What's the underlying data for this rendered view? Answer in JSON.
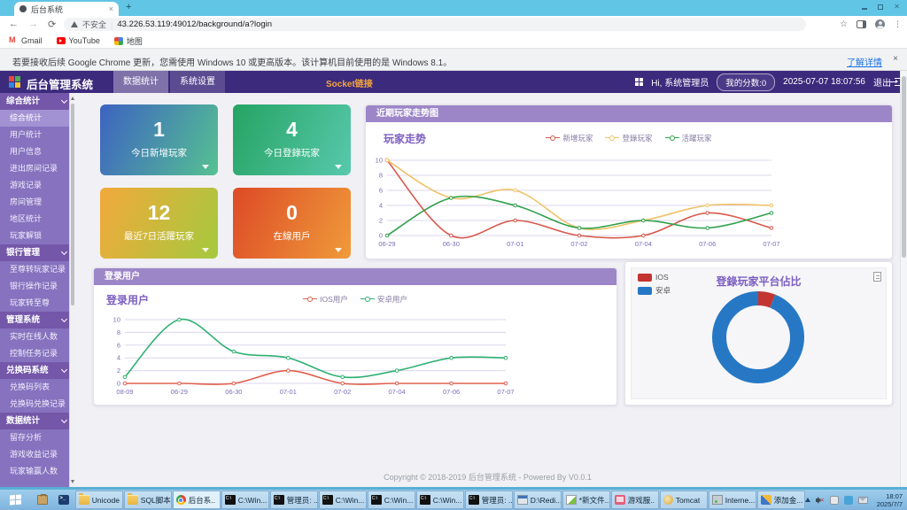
{
  "browser": {
    "tab_title": "后台系统",
    "tab_close": "×",
    "new_tab": "+",
    "url_security": "不安全",
    "url": "43.226.53.119:49012/background/a?login",
    "bookmarks": [
      {
        "label": "Gmail",
        "icon": "gmail"
      },
      {
        "label": "YouTube",
        "icon": "youtube"
      },
      {
        "label": "地图",
        "icon": "maps"
      }
    ]
  },
  "notification": {
    "text": "若要接收后续 Google Chrome 更新，您需使用 Windows 10 或更高版本。该计算机目前使用的是 Windows 8.1。",
    "link": "了解详情",
    "close": "×"
  },
  "header": {
    "title": "后台管理系统",
    "nav": [
      {
        "label": "数据统计",
        "active": true
      },
      {
        "label": "系统设置",
        "active": false
      }
    ],
    "socket": "Socket链接",
    "greeting": "Hi, 系统管理员",
    "score": "我的分数:0",
    "datetime": "2025-07-07 18:07:56",
    "logout": "退出"
  },
  "sidebar": {
    "sections": [
      {
        "label": "综合统计",
        "items": [
          {
            "label": "综合统计",
            "active": true
          },
          {
            "label": "用户统计"
          },
          {
            "label": "用户信息"
          },
          {
            "label": "进出房间记录"
          },
          {
            "label": "游戏记录"
          },
          {
            "label": "房间管理"
          },
          {
            "label": "地区统计"
          },
          {
            "label": "玩家解锁"
          }
        ]
      },
      {
        "label": "银行管理",
        "items": [
          {
            "label": "至尊转玩家记录"
          },
          {
            "label": "银行操作记录"
          },
          {
            "label": "玩家转至尊"
          }
        ]
      },
      {
        "label": "管理系统",
        "items": [
          {
            "label": "实时在线人数"
          },
          {
            "label": "控制任务记录"
          }
        ]
      },
      {
        "label": "兑换码系统",
        "items": [
          {
            "label": "兑换码列表"
          },
          {
            "label": "兑换码兑换记录"
          }
        ]
      },
      {
        "label": "数据统计",
        "items": [
          {
            "label": "留存分析"
          },
          {
            "label": "游戏收益记录"
          },
          {
            "label": "玩家输赢人数"
          }
        ]
      }
    ]
  },
  "main": {
    "cards": [
      {
        "value": "1",
        "label": "今日新增玩家",
        "from": "#3d63c1",
        "to": "#55c192"
      },
      {
        "value": "4",
        "label": "今日登錄玩家",
        "from": "#26a363",
        "to": "#57c9ac"
      },
      {
        "value": "12",
        "label": "最近7日活躍玩家",
        "from": "#f2a93b",
        "to": "#a5c93e"
      },
      {
        "value": "0",
        "label": "在線用戶",
        "from": "#dd4a26",
        "to": "#ef9b3a"
      }
    ],
    "panel1_header": "近期玩家走势图",
    "panel2_header": "登录用户",
    "footer": "Copyright © 2018-2019 后台管理系统 - Powered By V0.0.1"
  },
  "chart_data": [
    {
      "type": "line",
      "title": "玩家走势",
      "categories": [
        "06-29",
        "06-30",
        "07-01",
        "07-02",
        "07-04",
        "07-06",
        "07-07"
      ],
      "series": [
        {
          "name": "新增玩家",
          "color": "#d8574a",
          "values": [
            10,
            0,
            2,
            0,
            0,
            3,
            1
          ]
        },
        {
          "name": "登錄玩家",
          "color": "#efc269",
          "values": [
            10,
            5,
            6,
            1,
            2,
            4,
            4
          ]
        },
        {
          "name": "活躍玩家",
          "color": "#2fa14c",
          "values": [
            0,
            5,
            4,
            1,
            2,
            1,
            3
          ]
        }
      ],
      "ylim": [
        0,
        10
      ],
      "yticks": [
        0,
        2,
        4,
        6,
        8,
        10
      ],
      "grid": true,
      "legend_position": "top-center"
    },
    {
      "type": "line",
      "title": "登录用户",
      "categories": [
        "08-09",
        "06-29",
        "06-30",
        "07-01",
        "07-02",
        "07-04",
        "07-06",
        "07-07"
      ],
      "series": [
        {
          "name": "IOS用户",
          "color": "#e0604e",
          "values": [
            0,
            0,
            0,
            2,
            0,
            0,
            0,
            0
          ]
        },
        {
          "name": "安卓用户",
          "color": "#2fb173",
          "values": [
            1,
            10,
            5,
            4,
            1,
            2,
            4,
            4
          ]
        }
      ],
      "ylim": [
        0,
        10
      ],
      "yticks": [
        0,
        2,
        4,
        6,
        8,
        10
      ],
      "grid": true,
      "legend_position": "top-center"
    },
    {
      "type": "pie",
      "title": "登錄玩家平台佔比",
      "labels": [
        "IOS",
        "安卓"
      ],
      "values": [
        6,
        94
      ],
      "colors": [
        "#c23531",
        "#2678c5"
      ],
      "legend_position": "top-left"
    }
  ],
  "taskbar": {
    "items": [
      {
        "label": "Unicode",
        "icon": "folder"
      },
      {
        "label": "SQL脚本",
        "icon": "folder"
      },
      {
        "label": "后台系..",
        "icon": "chrome",
        "active": true
      },
      {
        "label": "C:\\Win...",
        "icon": "cmd"
      },
      {
        "label": "管理员: ..",
        "icon": "cmd"
      },
      {
        "label": "C:\\Win...",
        "icon": "cmd"
      },
      {
        "label": "C:\\Win...",
        "icon": "cmd"
      },
      {
        "label": "C:\\Win...",
        "icon": "cmd"
      },
      {
        "label": "管理员: ..",
        "icon": "cmd"
      },
      {
        "label": "D:\\Redi...",
        "icon": "window"
      },
      {
        "label": "*新文件...",
        "icon": "notepad"
      },
      {
        "label": "游戏服..",
        "icon": "game"
      },
      {
        "label": "Tomcat",
        "icon": "tomcat"
      },
      {
        "label": "Interne...",
        "icon": "server"
      },
      {
        "label": "添加金...",
        "icon": "tool"
      }
    ],
    "clock_time": "18:07",
    "clock_date": "2025/7/7"
  }
}
